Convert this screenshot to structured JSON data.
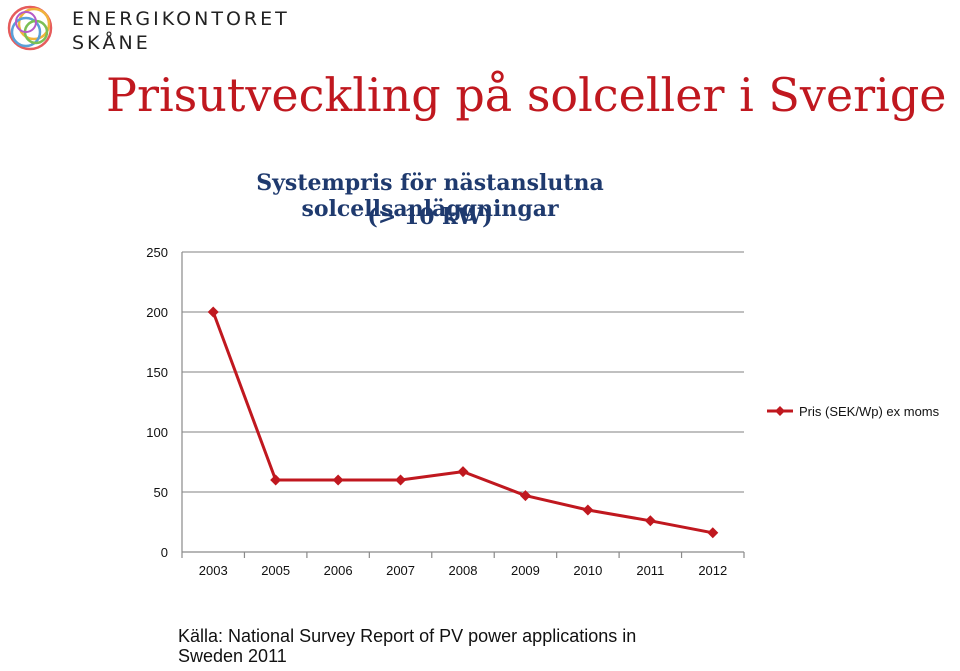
{
  "logo": {
    "line1": "ENERGIKONTORET",
    "line2": "SKÅNE",
    "colors": [
      "#e65c5c",
      "#f0b33c",
      "#5aa0d8",
      "#7bbf55",
      "#b45ac8"
    ]
  },
  "page_title": "Prisutveckling på solceller i Sverige",
  "source": "Källa: National Survey Report of PV power applications in Sweden 2011",
  "chart_data": {
    "type": "line",
    "title_line1": "Systempris för nästanslutna  solcellsanläggningar",
    "title_line2": "(> 10 kW)",
    "categories": [
      "2003",
      "2005",
      "2006",
      "2007",
      "2008",
      "2009",
      "2010",
      "2011",
      "2012"
    ],
    "series": [
      {
        "name": "Pris (SEK/Wp) ex moms",
        "values": [
          200,
          60,
          60,
          60,
          67,
          47,
          35,
          26,
          16
        ],
        "color": "#c0181f"
      }
    ],
    "yticks": [
      "0",
      "50",
      "100",
      "150",
      "200",
      "250"
    ],
    "ylim": [
      0,
      250
    ],
    "grid": true,
    "legend_position": "right"
  }
}
